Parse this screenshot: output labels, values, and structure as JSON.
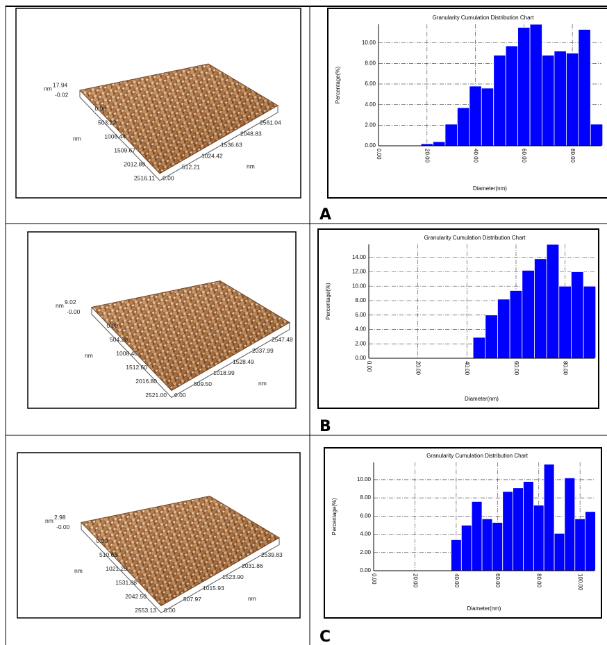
{
  "panel_labels": [
    "A",
    "B",
    "C"
  ],
  "afm_images": [
    {
      "z_unit": "nm",
      "z_max": "17.94",
      "z_min": "-0.02",
      "y_unit": "nm",
      "y_ticks": [
        "0.00",
        "503.22",
        "1006.44",
        "1509.67",
        "2012.89",
        "2516.11"
      ],
      "x_unit": "nm",
      "x_ticks": [
        "0.00",
        "512.21",
        "1024.42",
        "1536.63",
        "2048.83",
        "2561.04"
      ]
    },
    {
      "z_unit": "nm",
      "z_max": "9.02",
      "z_min": "-0.00",
      "y_unit": "nm",
      "y_ticks": [
        "0.00",
        "504.20",
        "1008.40",
        "1512.60",
        "2016.80",
        "2521.00"
      ],
      "x_unit": "nm",
      "x_ticks": [
        "0.00",
        "509.50",
        "1018.99",
        "1528.49",
        "2037.99",
        "2547.48"
      ]
    },
    {
      "z_unit": "nm",
      "z_max": "2.98",
      "z_min": "-0.00",
      "y_unit": "nm",
      "y_ticks": [
        "0.00",
        "510.63",
        "1021.25",
        "1531.88",
        "2042.50",
        "2553.13"
      ],
      "x_unit": "nm",
      "x_ticks": [
        "0.00",
        "507.97",
        "1015.93",
        "1523.90",
        "2031.86",
        "2539.83"
      ]
    }
  ],
  "chart_data": [
    {
      "type": "bar",
      "title": "Granularity Cumulation Distribution  Chart",
      "xlabel": "Diameter(nm)",
      "ylabel": "Percentage(%)",
      "color": "#0000ff",
      "grid": true,
      "x": [
        20,
        25,
        30,
        35,
        40,
        45,
        50,
        55,
        60,
        65,
        70,
        75,
        80,
        85,
        90
      ],
      "values": [
        0.2,
        0.4,
        2.1,
        3.7,
        5.8,
        5.6,
        8.8,
        9.7,
        11.5,
        11.8,
        8.8,
        9.2,
        9.0,
        11.3,
        2.1
      ],
      "xlim": [
        0,
        92
      ],
      "ylim": [
        0,
        11.8
      ],
      "xticks": [
        {
          "value": 0,
          "label": "0.00"
        },
        {
          "value": 20,
          "label": "20.00"
        },
        {
          "value": 40,
          "label": "40.00"
        },
        {
          "value": 60,
          "label": "60.00"
        },
        {
          "value": 80,
          "label": "80.00"
        }
      ],
      "yticks": [
        {
          "value": 0,
          "label": "0.00"
        },
        {
          "value": 2,
          "label": "2.00"
        },
        {
          "value": 4,
          "label": "4.00"
        },
        {
          "value": 6,
          "label": "6.00"
        },
        {
          "value": 8,
          "label": "8.00"
        },
        {
          "value": 10,
          "label": "10.00"
        }
      ]
    },
    {
      "type": "bar",
      "title": "Granularity Cumulation Distribution  Chart",
      "xlabel": "Diameter(nm)",
      "ylabel": "Percentage(%)",
      "color": "#0000ff",
      "grid": true,
      "x": [
        45,
        50,
        55,
        60,
        65,
        70,
        75,
        80,
        85,
        90
      ],
      "values": [
        2.9,
        6.0,
        8.2,
        9.4,
        12.2,
        13.8,
        15.8,
        10.0,
        12.0,
        10.0
      ],
      "xlim": [
        0,
        92
      ],
      "ylim": [
        0,
        15.8
      ],
      "xticks": [
        {
          "value": 0,
          "label": "0.00"
        },
        {
          "value": 20,
          "label": "20.00"
        },
        {
          "value": 40,
          "label": "40.00"
        },
        {
          "value": 60,
          "label": "60.00"
        },
        {
          "value": 80,
          "label": "80.00"
        }
      ],
      "yticks": [
        {
          "value": 0,
          "label": "0.00"
        },
        {
          "value": 2,
          "label": "2.00"
        },
        {
          "value": 4,
          "label": "4.00"
        },
        {
          "value": 6,
          "label": "6.00"
        },
        {
          "value": 8,
          "label": "8.00"
        },
        {
          "value": 10,
          "label": "10.00"
        },
        {
          "value": 12,
          "label": "12.00"
        },
        {
          "value": 14,
          "label": "14.00"
        }
      ]
    },
    {
      "type": "bar",
      "title": "Granularity Cumulation Distribution  Chart",
      "xlabel": "Diameter(nm)",
      "ylabel": "Percentage(%)",
      "color": "#0000ff",
      "grid": true,
      "x": [
        40,
        45,
        50,
        55,
        60,
        65,
        70,
        75,
        80,
        85,
        90,
        95,
        100,
        105
      ],
      "values": [
        3.4,
        5.0,
        7.6,
        5.7,
        5.3,
        8.7,
        9.1,
        9.8,
        7.2,
        11.7,
        4.1,
        10.2,
        5.7,
        6.5
      ],
      "xlim": [
        0,
        107
      ],
      "ylim": [
        0,
        11.9
      ],
      "xticks": [
        {
          "value": 0,
          "label": "0.00"
        },
        {
          "value": 20,
          "label": "20.00"
        },
        {
          "value": 40,
          "label": "40.00"
        },
        {
          "value": 60,
          "label": "60.00"
        },
        {
          "value": 80,
          "label": "80.00"
        },
        {
          "value": 100,
          "label": "100.00"
        }
      ],
      "yticks": [
        {
          "value": 0,
          "label": "0.00"
        },
        {
          "value": 2,
          "label": "2.00"
        },
        {
          "value": 4,
          "label": "4.00"
        },
        {
          "value": 6,
          "label": "6.00"
        },
        {
          "value": 8,
          "label": "8.00"
        },
        {
          "value": 10,
          "label": "10.00"
        }
      ]
    }
  ]
}
